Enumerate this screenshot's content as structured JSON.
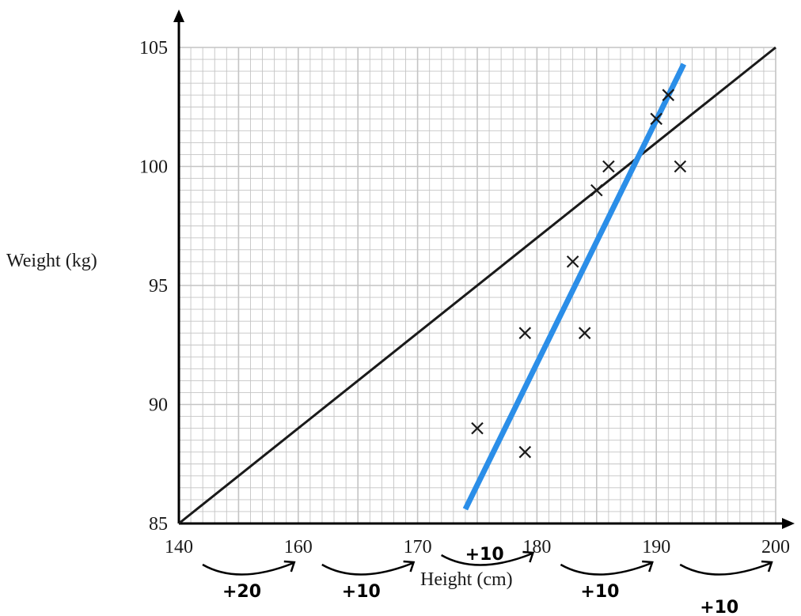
{
  "chart_data": {
    "type": "scatter",
    "title": "",
    "xlabel": "Height (cm)",
    "ylabel": "Weight (kg)",
    "x_ticks": [
      {
        "value": 140,
        "label": "140"
      },
      {
        "value": 160,
        "label": "160"
      },
      {
        "value": 170,
        "label": "170"
      },
      {
        "value": 180,
        "label": "180"
      },
      {
        "value": 190,
        "label": "190"
      },
      {
        "value": 200,
        "label": "200"
      }
    ],
    "y_ticks": [
      {
        "value": 85,
        "label": "85"
      },
      {
        "value": 90,
        "label": "90"
      },
      {
        "value": 95,
        "label": "95"
      },
      {
        "value": 100,
        "label": "100"
      },
      {
        "value": 105,
        "label": "105"
      }
    ],
    "ylim": [
      85,
      105
    ],
    "grid": true,
    "points": [
      {
        "x": 175,
        "y": 89
      },
      {
        "x": 179,
        "y": 88
      },
      {
        "x": 179,
        "y": 93
      },
      {
        "x": 183,
        "y": 96
      },
      {
        "x": 184,
        "y": 93
      },
      {
        "x": 185,
        "y": 99
      },
      {
        "x": 186,
        "y": 100
      },
      {
        "x": 190,
        "y": 102
      },
      {
        "x": 191,
        "y": 103
      },
      {
        "x": 192,
        "y": 100
      }
    ],
    "lines": [
      {
        "color": "#1a1a1a",
        "from": {
          "x": 140,
          "y": 85
        },
        "to": {
          "x": 200,
          "y": 105
        }
      },
      {
        "color": "#2b8ee8",
        "from": {
          "x": 174,
          "y": 85.6
        },
        "to": {
          "x": 192.3,
          "y": 104.3
        }
      }
    ],
    "annotations": [
      {
        "text": "+20",
        "under": 0
      },
      {
        "text": "+10",
        "under": 1
      },
      {
        "text": "+10",
        "under": 2
      },
      {
        "text": "+10",
        "under": 3
      },
      {
        "text": "+10",
        "under": 4
      }
    ],
    "colors": {
      "grid": "#c4c4c4",
      "axis": "#000000",
      "marker": "#1a1a1a",
      "fit_line": "#2b8ee8"
    }
  }
}
